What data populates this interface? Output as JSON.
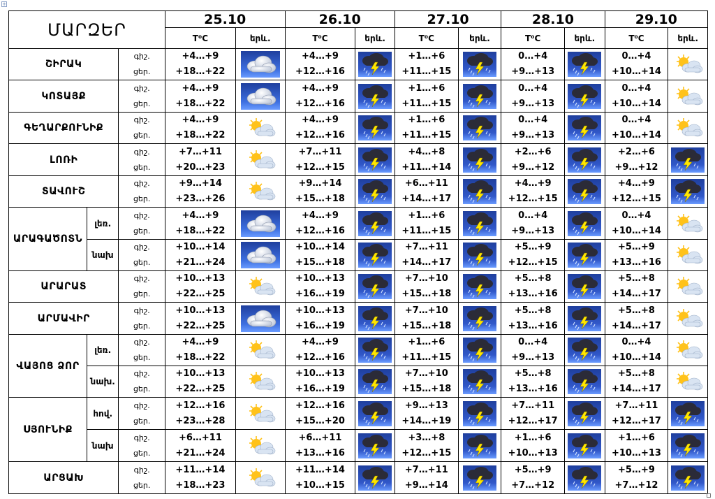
{
  "header": {
    "regions_label": "ՄԱՐԶԵՐ",
    "days": [
      {
        "date": "25.10",
        "temp_label": "T⁰C",
        "icon_label": "երև."
      },
      {
        "date": "26.10",
        "temp_label": "T⁰C",
        "icon_label": "երև."
      },
      {
        "date": "27.10",
        "temp_label": "T⁰C",
        "icon_label": "երև."
      },
      {
        "date": "28.10",
        "temp_label": "T⁰C",
        "icon_label": "երև."
      },
      {
        "date": "29.10",
        "temp_label": "T⁰C",
        "icon_label": "երև."
      }
    ]
  },
  "rows": [
    {
      "region": "ՇԻՐԱԿ",
      "part": "",
      "night_label": "գիշ.",
      "day_label": "ցեր.",
      "days": [
        {
          "night": "+4…+9",
          "day": "+18…+22",
          "icon": "cloudy"
        },
        {
          "night": "+4…+9",
          "day": "+12…+16",
          "icon": "storm"
        },
        {
          "night": "+1…+6",
          "day": "+11…+15",
          "icon": "storm"
        },
        {
          "night": "0…+4",
          "day": "+9…+13",
          "icon": "storm"
        },
        {
          "night": "0…+4",
          "day": "+10…+14",
          "icon": "partly-sunny"
        }
      ]
    },
    {
      "region": "ԿՈՏԱՅՔ",
      "part": "",
      "night_label": "գիշ.",
      "day_label": "ցեր.",
      "days": [
        {
          "night": "+4…+9",
          "day": "+18…+22",
          "icon": "cloudy"
        },
        {
          "night": "+4…+9",
          "day": "+12…+16",
          "icon": "storm"
        },
        {
          "night": "+1…+6",
          "day": "+11…+15",
          "icon": "storm"
        },
        {
          "night": "0…+4",
          "day": "+9…+13",
          "icon": "storm"
        },
        {
          "night": "0…+4",
          "day": "+10…+14",
          "icon": "partly-sunny"
        }
      ]
    },
    {
      "region": "ԳԵՂԱՐՔՈՒՆԻՔ",
      "part": "",
      "night_label": "գիշ.",
      "day_label": "ցեր.",
      "days": [
        {
          "night": "+4…+9",
          "day": "+18…+22",
          "icon": "partly-sunny"
        },
        {
          "night": "+4…+9",
          "day": "+12…+16",
          "icon": "storm"
        },
        {
          "night": "+1…+6",
          "day": "+11…+15",
          "icon": "storm"
        },
        {
          "night": "0…+4",
          "day": "+9…+13",
          "icon": "storm"
        },
        {
          "night": "0…+4",
          "day": "+10…+14",
          "icon": "partly-sunny"
        }
      ]
    },
    {
      "region": "ԼՈՌԻ",
      "part": "",
      "night_label": "գիշ.",
      "day_label": "ցեր.",
      "days": [
        {
          "night": "+7…+11",
          "day": "+20…+23",
          "icon": "partly-sunny"
        },
        {
          "night": "+7…+11",
          "day": "+12…+15",
          "icon": "storm"
        },
        {
          "night": "+4…+8",
          "day": "+11…+14",
          "icon": "storm"
        },
        {
          "night": "+2…+6",
          "day": "+9…+12",
          "icon": "storm"
        },
        {
          "night": "+2…+6",
          "day": "+9…+12",
          "icon": "storm"
        }
      ]
    },
    {
      "region": "ՏԱՎՈՒՇ",
      "part": "",
      "night_label": "գիշ.",
      "day_label": "ցեր.",
      "days": [
        {
          "night": "+9…+14",
          "day": "+23…+26",
          "icon": "partly-sunny"
        },
        {
          "night": "+9…+14",
          "day": "+15…+18",
          "icon": "storm"
        },
        {
          "night": "+6…+11",
          "day": "+14…+17",
          "icon": "storm"
        },
        {
          "night": "+4…+9",
          "day": "+12…+15",
          "icon": "storm"
        },
        {
          "night": "+4…+9",
          "day": "+12…+15",
          "icon": "storm"
        }
      ]
    },
    {
      "region": "ԱՐԱԳԱԾՈՏՆ",
      "part": "լեռ.",
      "night_label": "գիշ.",
      "day_label": "ցեր.",
      "days": [
        {
          "night": "+4…+9",
          "day": "+18…+22",
          "icon": "cloudy"
        },
        {
          "night": "+4…+9",
          "day": "+12…+16",
          "icon": "storm"
        },
        {
          "night": "+1…+6",
          "day": "+11…+15",
          "icon": "storm"
        },
        {
          "night": "0…+4",
          "day": "+9…+13",
          "icon": "storm"
        },
        {
          "night": "0…+4",
          "day": "+10…+14",
          "icon": "partly-sunny"
        }
      ]
    },
    {
      "region": "",
      "part": "նախ",
      "night_label": "գիշ.",
      "day_label": "ցեր.",
      "days": [
        {
          "night": "+10…+14",
          "day": "+21…+24",
          "icon": "cloudy"
        },
        {
          "night": "+10…+14",
          "day": "+15…+18",
          "icon": "storm"
        },
        {
          "night": "+7…+11",
          "day": "+14…+17",
          "icon": "storm"
        },
        {
          "night": "+5…+9",
          "day": "+12…+15",
          "icon": "storm"
        },
        {
          "night": "+5…+9",
          "day": "+13…+16",
          "icon": "partly-sunny"
        }
      ]
    },
    {
      "region": "ԱՐԱՐԱՏ",
      "part": "",
      "night_label": "գիշ.",
      "day_label": "ցեր.",
      "days": [
        {
          "night": "+10…+13",
          "day": "+22…+25",
          "icon": "partly-sunny"
        },
        {
          "night": "+10…+13",
          "day": "+16…+19",
          "icon": "storm"
        },
        {
          "night": "+7…+10",
          "day": "+15…+18",
          "icon": "storm"
        },
        {
          "night": "+5…+8",
          "day": "+13…+16",
          "icon": "storm"
        },
        {
          "night": "+5…+8",
          "day": "+14…+17",
          "icon": "partly-sunny"
        }
      ]
    },
    {
      "region": "ԱՐՄԱՎԻՐ",
      "part": "",
      "night_label": "գիշ.",
      "day_label": "ցեր.",
      "days": [
        {
          "night": "+10…+13",
          "day": "+22…+25",
          "icon": "cloudy"
        },
        {
          "night": "+10…+13",
          "day": "+16…+19",
          "icon": "storm"
        },
        {
          "night": "+7…+10",
          "day": "+15…+18",
          "icon": "storm"
        },
        {
          "night": "+5…+8",
          "day": "+13…+16",
          "icon": "storm"
        },
        {
          "night": "+5…+8",
          "day": "+14…+17",
          "icon": "partly-sunny"
        }
      ]
    },
    {
      "region": "ՎԱՅՈՑ ՁՈՐ",
      "part": "լեռ.",
      "night_label": "գիշ.",
      "day_label": "ցեր.",
      "days": [
        {
          "night": "+4…+9",
          "day": "+18…+22",
          "icon": "partly-sunny"
        },
        {
          "night": "+4…+9",
          "day": "+12…+16",
          "icon": "storm"
        },
        {
          "night": "+1…+6",
          "day": "+11…+15",
          "icon": "storm"
        },
        {
          "night": "0…+4",
          "day": "+9…+13",
          "icon": "storm"
        },
        {
          "night": "0…+4",
          "day": "+10…+14",
          "icon": "partly-sunny"
        }
      ]
    },
    {
      "region": "",
      "part": "նախ.",
      "night_label": "գիշ.",
      "day_label": "ցեր.",
      "days": [
        {
          "night": "+10…+13",
          "day": "+22…+25",
          "icon": "partly-sunny"
        },
        {
          "night": "+10…+13",
          "day": "+16…+19",
          "icon": "storm"
        },
        {
          "night": "+7…+10",
          "day": "+15…+18",
          "icon": "storm"
        },
        {
          "night": "+5…+8",
          "day": "+13…+16",
          "icon": "storm"
        },
        {
          "night": "+5…+8",
          "day": "+14…+17",
          "icon": "partly-sunny"
        }
      ]
    },
    {
      "region": "ՍՅՈՒՆԻՔ",
      "part": "հով.",
      "night_label": "գիշ.",
      "day_label": "ցեր.",
      "days": [
        {
          "night": "+12…+16",
          "day": "+23…+28",
          "icon": "partly-sunny"
        },
        {
          "night": "+12…+16",
          "day": "+15…+20",
          "icon": "storm"
        },
        {
          "night": "+9…+13",
          "day": "+14…+19",
          "icon": "storm"
        },
        {
          "night": "+7…+11",
          "day": "+12…+17",
          "icon": "storm"
        },
        {
          "night": "+7…+11",
          "day": "+12…+17",
          "icon": "storm"
        }
      ]
    },
    {
      "region": "",
      "part": "նախ",
      "night_label": "գիշ.",
      "day_label": "ցեր.",
      "days": [
        {
          "night": "+6…+11",
          "day": "+21…+24",
          "icon": "partly-sunny"
        },
        {
          "night": "+6…+11",
          "day": "+13…+16",
          "icon": "storm"
        },
        {
          "night": "+3…+8",
          "day": "+12…+15",
          "icon": "storm"
        },
        {
          "night": "+1…+6",
          "day": "+10…+13",
          "icon": "storm"
        },
        {
          "night": "+1…+6",
          "day": "+10…+13",
          "icon": "storm"
        }
      ]
    },
    {
      "region": "ԱՐՑԱԽ",
      "part": "",
      "night_label": "գիշ.",
      "day_label": "ցեր.",
      "days": [
        {
          "night": "+11…+14",
          "day": "+18…+23",
          "icon": "partly-sunny"
        },
        {
          "night": "+11…+14",
          "day": "+10…+15",
          "icon": "storm"
        },
        {
          "night": "+7…+11",
          "day": "+9…+14",
          "icon": "storm"
        },
        {
          "night": "+5…+9",
          "day": "+7…+12",
          "icon": "storm"
        },
        {
          "night": "+5…+9",
          "day": "+7…+12",
          "icon": "storm"
        }
      ]
    }
  ],
  "colors": {
    "sky_top": "#1f3f9e",
    "sky_bottom": "#6a9bff",
    "sun": "#ffc21a",
    "bolt": "#ffe600",
    "cloud_dark": "#2b2b38"
  }
}
